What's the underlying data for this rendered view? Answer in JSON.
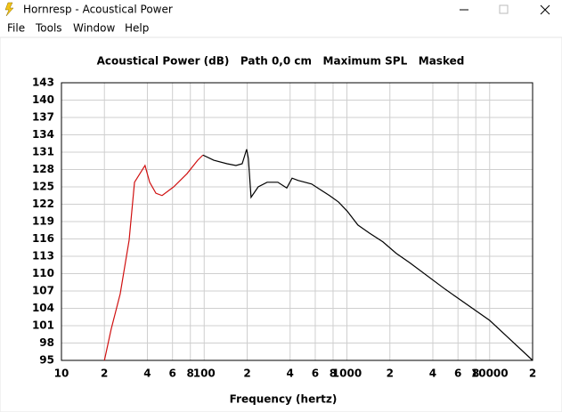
{
  "window": {
    "title": "Hornresp - Acoustical Power",
    "menu": [
      "File",
      "Tools",
      "Window",
      "Help"
    ]
  },
  "chart_data": {
    "type": "line",
    "title": "Acoustical Power (dB)   Path 0,0 cm   Maximum SPL   Masked",
    "x_label": "Frequency (hertz)",
    "xscale": "log",
    "grid": true,
    "xlim": [
      10,
      20000
    ],
    "ylim": [
      95,
      143
    ],
    "xticks": [
      10,
      {
        "value": 20,
        "label": "2"
      },
      {
        "value": 40,
        "label": "4"
      },
      {
        "value": 60,
        "label": "6"
      },
      {
        "value": 80,
        "label": "8"
      },
      100,
      {
        "value": 200,
        "label": "2"
      },
      {
        "value": 400,
        "label": "4"
      },
      {
        "value": 600,
        "label": "6"
      },
      {
        "value": 800,
        "label": "8"
      },
      1000,
      {
        "value": 2000,
        "label": "2"
      },
      {
        "value": 4000,
        "label": "4"
      },
      {
        "value": 6000,
        "label": "6"
      },
      {
        "value": 8000,
        "label": "8"
      },
      10000,
      {
        "value": 20000,
        "label": "2"
      }
    ],
    "yticks": [
      95,
      98,
      101,
      104,
      107,
      110,
      113,
      116,
      119,
      122,
      125,
      128,
      131,
      134,
      137,
      140,
      143
    ],
    "series": [
      {
        "color": "#d01010",
        "x": [
          20,
          22.3,
          25.8,
          29.8,
          32.5,
          38.5,
          41.5,
          45.9,
          50.7,
          61.1,
          75.9,
          90,
          98
        ],
        "values": [
          95,
          100.4,
          106.5,
          115.8,
          125.8,
          128.7,
          125.8,
          123.9,
          123.5,
          125,
          127.3,
          129.6,
          130.5
        ]
      },
      {
        "color": "#000000",
        "x": [
          98,
          116.7,
          144.6,
          167,
          184.6,
          198.4,
          204,
          213,
          239,
          276,
          328,
          379,
          413,
          456,
          566,
          635,
          755,
          872,
          1005,
          1194,
          1439,
          1786,
          2217,
          2748,
          4886,
          10020,
          20000
        ],
        "values": [
          130.5,
          129.6,
          129,
          128.7,
          129,
          131.5,
          129.9,
          123.2,
          125,
          125.8,
          125.8,
          124.8,
          126.5,
          126.1,
          125.5,
          124.7,
          123.5,
          122.4,
          120.8,
          118.4,
          117,
          115.5,
          113.5,
          111.9,
          107.3,
          101.9,
          95
        ]
      }
    ]
  }
}
